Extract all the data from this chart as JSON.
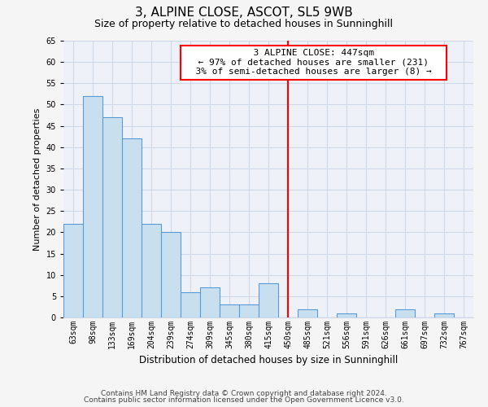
{
  "title": "3, ALPINE CLOSE, ASCOT, SL5 9WB",
  "subtitle": "Size of property relative to detached houses in Sunninghill",
  "xlabel": "Distribution of detached houses by size in Sunninghill",
  "ylabel": "Number of detached properties",
  "bin_labels": [
    "63sqm",
    "98sqm",
    "133sqm",
    "169sqm",
    "204sqm",
    "239sqm",
    "274sqm",
    "309sqm",
    "345sqm",
    "380sqm",
    "415sqm",
    "450sqm",
    "485sqm",
    "521sqm",
    "556sqm",
    "591sqm",
    "626sqm",
    "661sqm",
    "697sqm",
    "732sqm",
    "767sqm"
  ],
  "bar_heights": [
    22,
    52,
    47,
    42,
    22,
    20,
    6,
    7,
    3,
    3,
    8,
    0,
    2,
    0,
    1,
    0,
    0,
    2,
    0,
    1,
    0
  ],
  "bar_color": "#c8dff0",
  "bar_edge_color": "#5b9bd5",
  "reference_line_index": 11,
  "annotation_title": "3 ALPINE CLOSE: 447sqm",
  "annotation_line1": "← 97% of detached houses are smaller (231)",
  "annotation_line2": "3% of semi-detached houses are larger (8) →",
  "ylim": [
    0,
    65
  ],
  "yticks": [
    0,
    5,
    10,
    15,
    20,
    25,
    30,
    35,
    40,
    45,
    50,
    55,
    60,
    65
  ],
  "grid_color": "#d0d8e8",
  "plot_bg_color": "#eef2f8",
  "fig_bg_color": "#f5f5f5",
  "footer_line1": "Contains HM Land Registry data © Crown copyright and database right 2024.",
  "footer_line2": "Contains public sector information licensed under the Open Government Licence v3.0.",
  "title_fontsize": 11,
  "subtitle_fontsize": 9,
  "xlabel_fontsize": 8.5,
  "ylabel_fontsize": 8,
  "tick_fontsize": 7,
  "annotation_fontsize": 8,
  "footer_fontsize": 6.5
}
